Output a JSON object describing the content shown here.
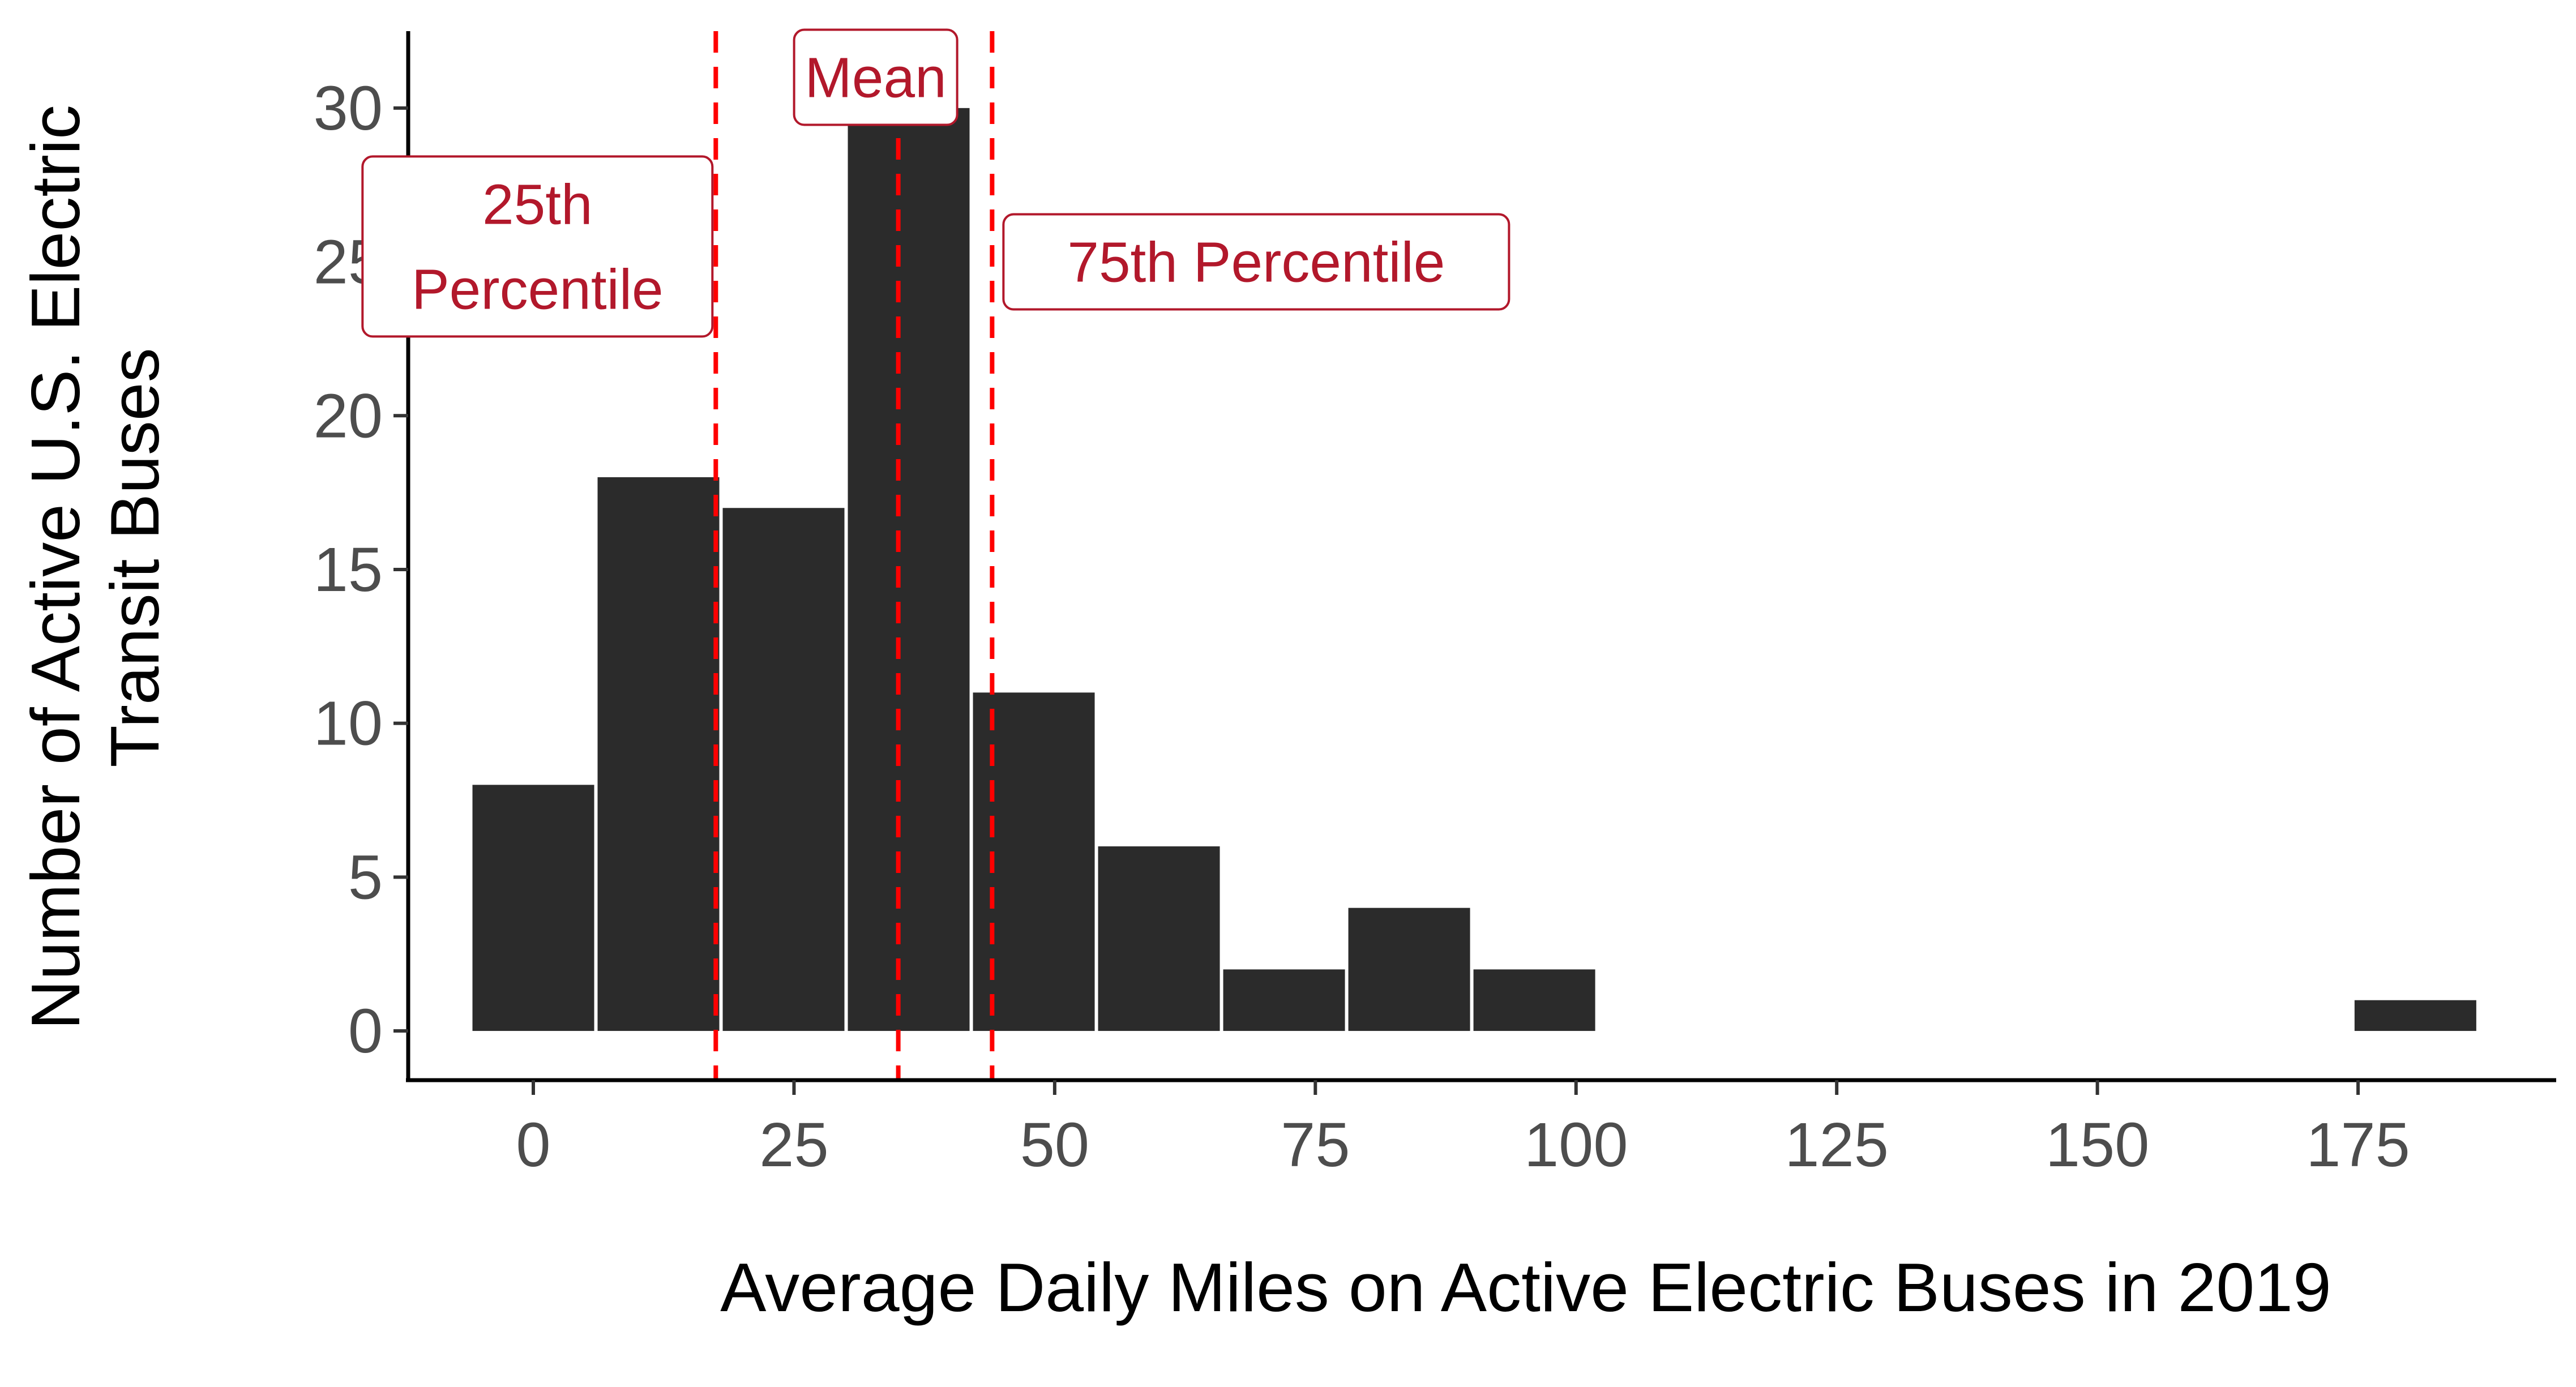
{
  "chart_data": {
    "type": "bar",
    "title": "",
    "xlabel": "Average Daily Miles on Active Electric Buses in 2019",
    "ylabel_lines": [
      "Number of Active U.S. Electric",
      "Transit Buses"
    ],
    "xlim": [
      -12,
      194
    ],
    "ylim": [
      -1.6,
      32.5
    ],
    "x_ticks": [
      0,
      25,
      50,
      75,
      100,
      125,
      150,
      175
    ],
    "y_ticks": [
      0,
      5,
      10,
      15,
      20,
      25,
      30
    ],
    "bin_width": 12,
    "bins": [
      {
        "x": 0,
        "count": 8
      },
      {
        "x": 12,
        "count": 18
      },
      {
        "x": 24,
        "count": 17
      },
      {
        "x": 36,
        "count": 30
      },
      {
        "x": 48,
        "count": 11
      },
      {
        "x": 60,
        "count": 6
      },
      {
        "x": 72,
        "count": 2
      },
      {
        "x": 84,
        "count": 4
      },
      {
        "x": 96,
        "count": 2
      },
      {
        "x": 180.5,
        "count": 1
      }
    ],
    "bar_color": "#2b2b2b",
    "reference_lines": [
      {
        "label_lines": [
          "25th",
          "Percentile"
        ],
        "x": 17.5,
        "label_side": "left",
        "label_y": 25.5
      },
      {
        "label_lines": [
          "Mean"
        ],
        "x": 35,
        "label_side": "center",
        "label_y": 31
      },
      {
        "label_lines": [
          "75th Percentile"
        ],
        "x": 44,
        "label_side": "right",
        "label_y": 25
      }
    ],
    "reference_color": "#ff0000",
    "annotation_color": "#b2182b",
    "grid": false
  }
}
